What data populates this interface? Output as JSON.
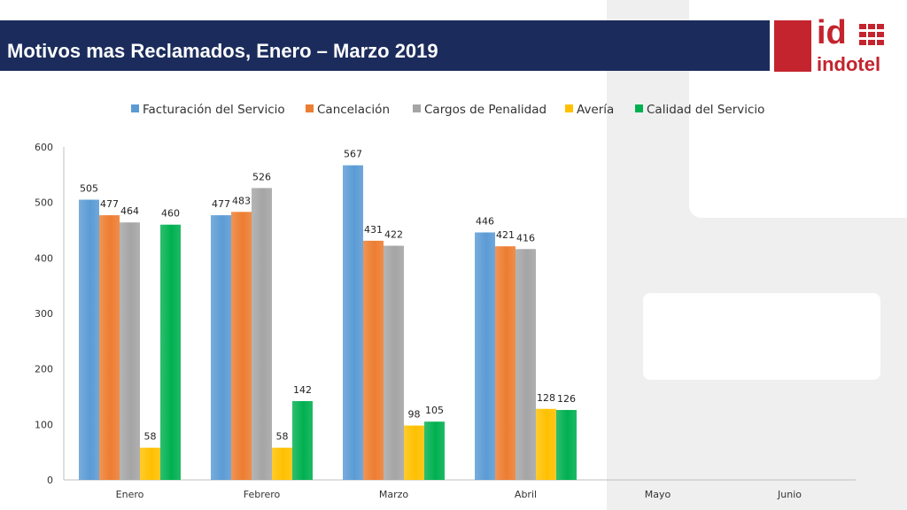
{
  "slide": {
    "title": "Motivos mas Reclamados, Enero – Marzo 2019",
    "logo_text_top": "id",
    "logo_text_bottom": "indotel",
    "brand_color": "#c4242e",
    "header_color": "#1b2c5c"
  },
  "chart_data": {
    "type": "bar",
    "title": "",
    "xlabel": "",
    "ylabel": "",
    "ylim": [
      0,
      600
    ],
    "yticks": [
      0,
      100,
      200,
      300,
      400,
      500,
      600
    ],
    "grid": false,
    "legend_position": "top",
    "categories": [
      "Enero",
      "Febrero",
      "Marzo",
      "Abril",
      "Mayo",
      "Junio"
    ],
    "series": [
      {
        "name": "Facturación del Servicio",
        "color": "#5b9bd5",
        "values": [
          505,
          477,
          567,
          446,
          null,
          null
        ]
      },
      {
        "name": "Cancelación",
        "color": "#ed7d31",
        "values": [
          477,
          483,
          431,
          421,
          null,
          null
        ]
      },
      {
        "name": "Cargos de Penalidad",
        "color": "#a5a5a5",
        "values": [
          464,
          526,
          422,
          416,
          null,
          null
        ]
      },
      {
        "name": "Avería",
        "color": "#ffc000",
        "values": [
          58,
          58,
          98,
          128,
          null,
          null
        ]
      },
      {
        "name": "Calidad del Servicio",
        "color": "#00b050",
        "values": [
          460,
          142,
          105,
          126,
          null,
          null
        ]
      }
    ]
  }
}
